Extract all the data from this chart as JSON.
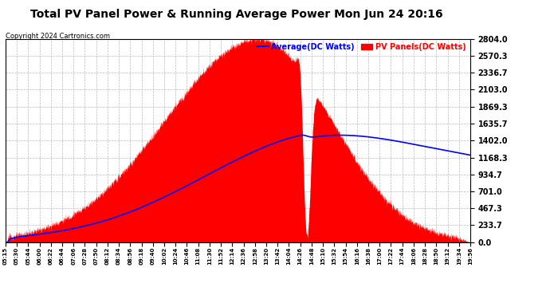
{
  "title": "Total PV Panel Power & Running Average Power Mon Jun 24 20:16",
  "copyright": "Copyright 2024 Cartronics.com",
  "legend_average": "Average(DC Watts)",
  "legend_pv": "PV Panels(DC Watts)",
  "y_ticks": [
    0.0,
    233.7,
    467.3,
    701.0,
    934.7,
    1168.3,
    1402.0,
    1635.7,
    1869.3,
    2103.0,
    2336.7,
    2570.3,
    2804.0
  ],
  "ymax": 2804.0,
  "ymin": 0.0,
  "x_tick_labels": [
    "05:15",
    "05:30",
    "05:44",
    "06:00",
    "06:22",
    "06:44",
    "07:06",
    "07:28",
    "07:50",
    "08:12",
    "08:34",
    "08:56",
    "09:18",
    "09:40",
    "10:02",
    "10:24",
    "10:46",
    "11:08",
    "11:30",
    "11:52",
    "12:14",
    "12:36",
    "12:58",
    "13:20",
    "13:42",
    "14:04",
    "14:26",
    "14:48",
    "15:10",
    "15:32",
    "15:54",
    "16:16",
    "16:38",
    "17:00",
    "17:22",
    "17:44",
    "18:06",
    "18:28",
    "18:50",
    "19:12",
    "19:34",
    "19:56"
  ],
  "background_color": "#ffffff",
  "pv_color": "#ff0000",
  "average_color": "#0000ff",
  "grid_color": "#bbbbbb",
  "title_color": "#000000",
  "copyright_color": "#000000",
  "title_fontsize": 10,
  "copyright_fontsize": 6,
  "ytick_fontsize": 7,
  "xtick_fontsize": 5
}
